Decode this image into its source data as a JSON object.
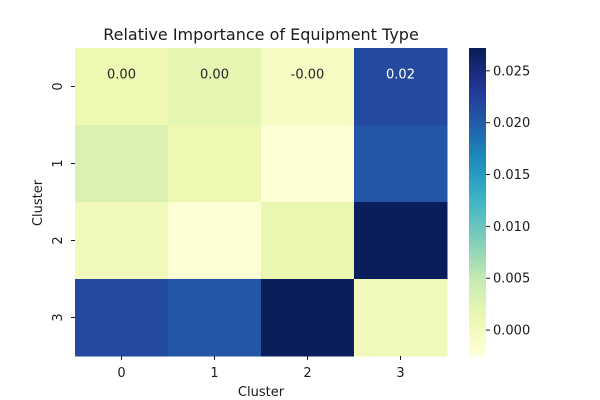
{
  "chart_data": {
    "type": "heatmap",
    "title": "Relative Importance of Equipment Type",
    "xlabel": "Cluster",
    "ylabel": "Cluster",
    "x_categories": [
      "0",
      "1",
      "2",
      "3"
    ],
    "y_categories": [
      "0",
      "1",
      "2",
      "3"
    ],
    "values": [
      [
        0.001,
        0.002,
        -0.0004,
        0.0215
      ],
      [
        0.003,
        0.001,
        -0.002,
        0.0205
      ],
      [
        0.0005,
        -0.002,
        0.0015,
        0.027
      ],
      [
        0.0215,
        0.0205,
        0.027,
        0.0005
      ]
    ],
    "annotations": [
      [
        "0.00",
        "0.00",
        "-0.00",
        "0.02"
      ],
      [
        "",
        "",
        "",
        ""
      ],
      [
        "",
        "",
        "",
        ""
      ],
      [
        "",
        "",
        "",
        ""
      ]
    ],
    "colorbar": {
      "range": [
        -0.0025,
        0.0272
      ],
      "ticks": [
        "0.000",
        "0.005",
        "0.010",
        "0.015",
        "0.020",
        "0.025"
      ],
      "tick_values": [
        0,
        0.005,
        0.01,
        0.015,
        0.02,
        0.025
      ],
      "colormap": "YlGnBu"
    }
  }
}
